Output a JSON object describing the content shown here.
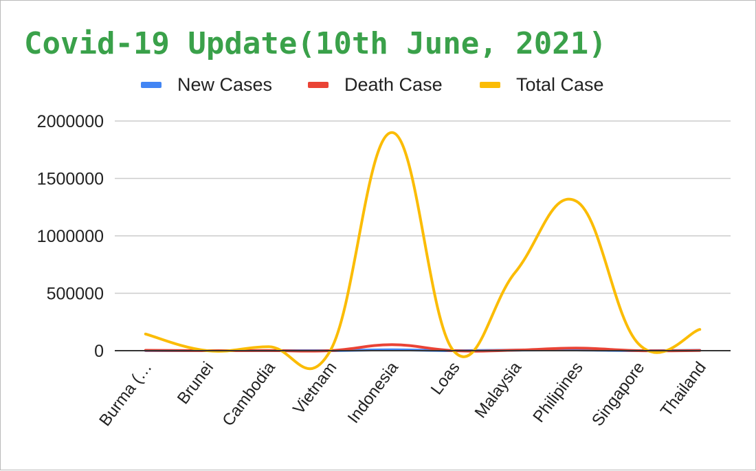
{
  "chart_data": {
    "type": "line",
    "title": "Covid-19 Update(10th June, 2021)",
    "xlabel": "",
    "ylabel": "",
    "categories": [
      "Burma (…",
      "Brunei",
      "Cambodia",
      "Vietnam",
      "Indonesia",
      "Loas",
      "Malaysia",
      "Philipines",
      "Singapore",
      "Thailand"
    ],
    "ylim": [
      0,
      2000000
    ],
    "yticks": [
      0,
      500000,
      1000000,
      1500000,
      2000000
    ],
    "ytick_labels": [
      "0",
      "500000",
      "1000000",
      "1500000",
      "2000000"
    ],
    "grid": true,
    "legend_position": "top",
    "smooth": true,
    "series": [
      {
        "name": "New Cases",
        "color": "#4285f4",
        "values": [
          500,
          0,
          500,
          200,
          8000,
          0,
          5000,
          6000,
          20,
          3000
        ]
      },
      {
        "name": "Death Case",
        "color": "#ea4335",
        "values": [
          3200,
          0,
          300,
          60,
          52000,
          0,
          4000,
          22000,
          33,
          1200
        ]
      },
      {
        "name": "Total Case",
        "color": "#fbbc04",
        "values": [
          145000,
          0,
          35000,
          0,
          1900000,
          0,
          680000,
          1300000,
          62000,
          185000
        ]
      }
    ]
  },
  "colors": {
    "title": "#3aa14a",
    "gridline": "#cccccc",
    "axis": "#333333"
  }
}
